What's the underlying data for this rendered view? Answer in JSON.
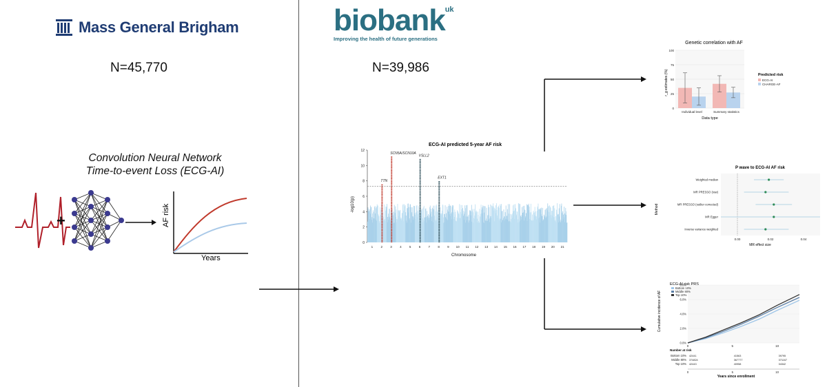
{
  "left": {
    "org_name": "Mass General Brigham",
    "n_label": "N=45,770",
    "model_line1": "Convolution Neural Network",
    "model_line2": "Time-to-event Loss (ECG-AI)",
    "plus": "+",
    "af_axis": "AF risk",
    "years_axis": "Years"
  },
  "right": {
    "biobank_word": "biobank",
    "biobank_uk": "uk",
    "biobank_tagline": "Improving the health of future generations",
    "n_label": "N=39,986"
  },
  "colors": {
    "mgb_blue": "#1f3c73",
    "biobank_teal": "#2b6f82",
    "ecg_red": "#b0202a",
    "node": "#3b3a8f",
    "pink": "#f2b8b5",
    "lightblue": "#a9c9e8"
  },
  "manhattan": {
    "chart_data": {
      "type": "scatter",
      "title": "ECG-AI predicted 5-year AF risk",
      "xlabel": "Chromosome",
      "ylabel": "-log10(p)",
      "ylim": [
        0,
        12
      ],
      "y_ticks": [
        0,
        2,
        4,
        6,
        8,
        10,
        12
      ],
      "chromosomes": [
        "1",
        "2",
        "3",
        "4",
        "5",
        "6",
        "7",
        "8",
        "9",
        "10",
        "11",
        "12",
        "13",
        "14",
        "15",
        "16",
        "17",
        "18",
        "19",
        "20",
        "21"
      ],
      "significance_line": 7.3,
      "peaks": [
        {
          "gene": "TTN",
          "chrom": "2",
          "value": 7.6
        },
        {
          "gene": "SCN5A/SCN10A",
          "chrom": "3",
          "value": 11.2
        },
        {
          "gene": "VSLL2",
          "chrom": "6",
          "value": 10.9
        },
        {
          "gene": "EXT1",
          "chrom": "8",
          "value": 8.0
        }
      ]
    }
  },
  "gencorr": {
    "chart_data": {
      "type": "bar",
      "title": "Genetic correlation with AF",
      "xlabel": "Data type",
      "ylabel": "r_g estimates (%)",
      "ylim": [
        0,
        100
      ],
      "y_ticks": [
        0,
        25,
        50,
        75,
        100
      ],
      "categories": [
        "Individual level",
        "Summary statistics"
      ],
      "legend_title": "Predicted risk",
      "series": [
        {
          "name": "ECG-AI",
          "values": [
            35,
            42
          ],
          "err": [
            26,
            14
          ]
        },
        {
          "name": "CHARGE-AF",
          "values": [
            20,
            27
          ],
          "err": [
            15,
            9
          ]
        }
      ]
    }
  },
  "mr": {
    "chart_data": {
      "type": "scatter",
      "title": "P wave to ECG-AI AF risk",
      "xlabel": "MR effect size",
      "ylabel": "Method",
      "x_ticks": [
        "0.00",
        "0.02",
        "0.04"
      ],
      "xlim": [
        -0.01,
        0.05
      ],
      "methods": [
        "Weighted median",
        "MR PRESSO (raw)",
        "MR PRESSO (outlier corrected)",
        "MR Egger",
        "Inverse variance weighted"
      ],
      "estimates": [
        0.019,
        0.017,
        0.022,
        0.022,
        0.017
      ],
      "lower": [
        0.01,
        0.004,
        0.011,
        -0.01,
        0.004
      ],
      "upper": [
        0.028,
        0.031,
        0.033,
        0.054,
        0.031
      ]
    }
  },
  "km": {
    "chart_data": {
      "type": "line",
      "title": "ECG-AI risk PRS",
      "xlabel": "Years since enrollment",
      "ylabel": "Cumulative incidence of AF",
      "y_ticks": [
        "0.0%",
        "2.0%",
        "4.0%",
        "6.0%",
        "8.0%"
      ],
      "ylim": [
        0,
        8
      ],
      "xlim": [
        0,
        12.5
      ],
      "x_ticks": [
        "0",
        "5",
        "10"
      ],
      "series": [
        {
          "name": "Bottom 10%",
          "x": [
            0,
            2,
            4,
            6,
            8,
            10,
            12.5
          ],
          "y": [
            0,
            0.6,
            1.4,
            2.3,
            3.3,
            4.5,
            5.9
          ]
        },
        {
          "name": "Middle 80%",
          "x": [
            0,
            2,
            4,
            6,
            8,
            10,
            12.5
          ],
          "y": [
            0,
            0.7,
            1.6,
            2.6,
            3.7,
            4.9,
            6.3
          ]
        },
        {
          "name": "Top 10%",
          "x": [
            0,
            2,
            4,
            6,
            8,
            10,
            12.5
          ],
          "y": [
            0,
            0.8,
            1.8,
            2.8,
            3.9,
            5.2,
            6.7
          ]
        }
      ],
      "risk_table_title": "Number at risk",
      "risk_table": [
        {
          "group": "Bottom 10%",
          "values": [
            "42441",
            "41563",
            "39795"
          ]
        },
        {
          "group": "Middle 80%",
          "values": [
            "374824",
            "367777",
            "371167"
          ]
        },
        {
          "group": "Top 10%",
          "values": [
            "42443",
            "40958",
            "34342"
          ]
        }
      ]
    }
  }
}
